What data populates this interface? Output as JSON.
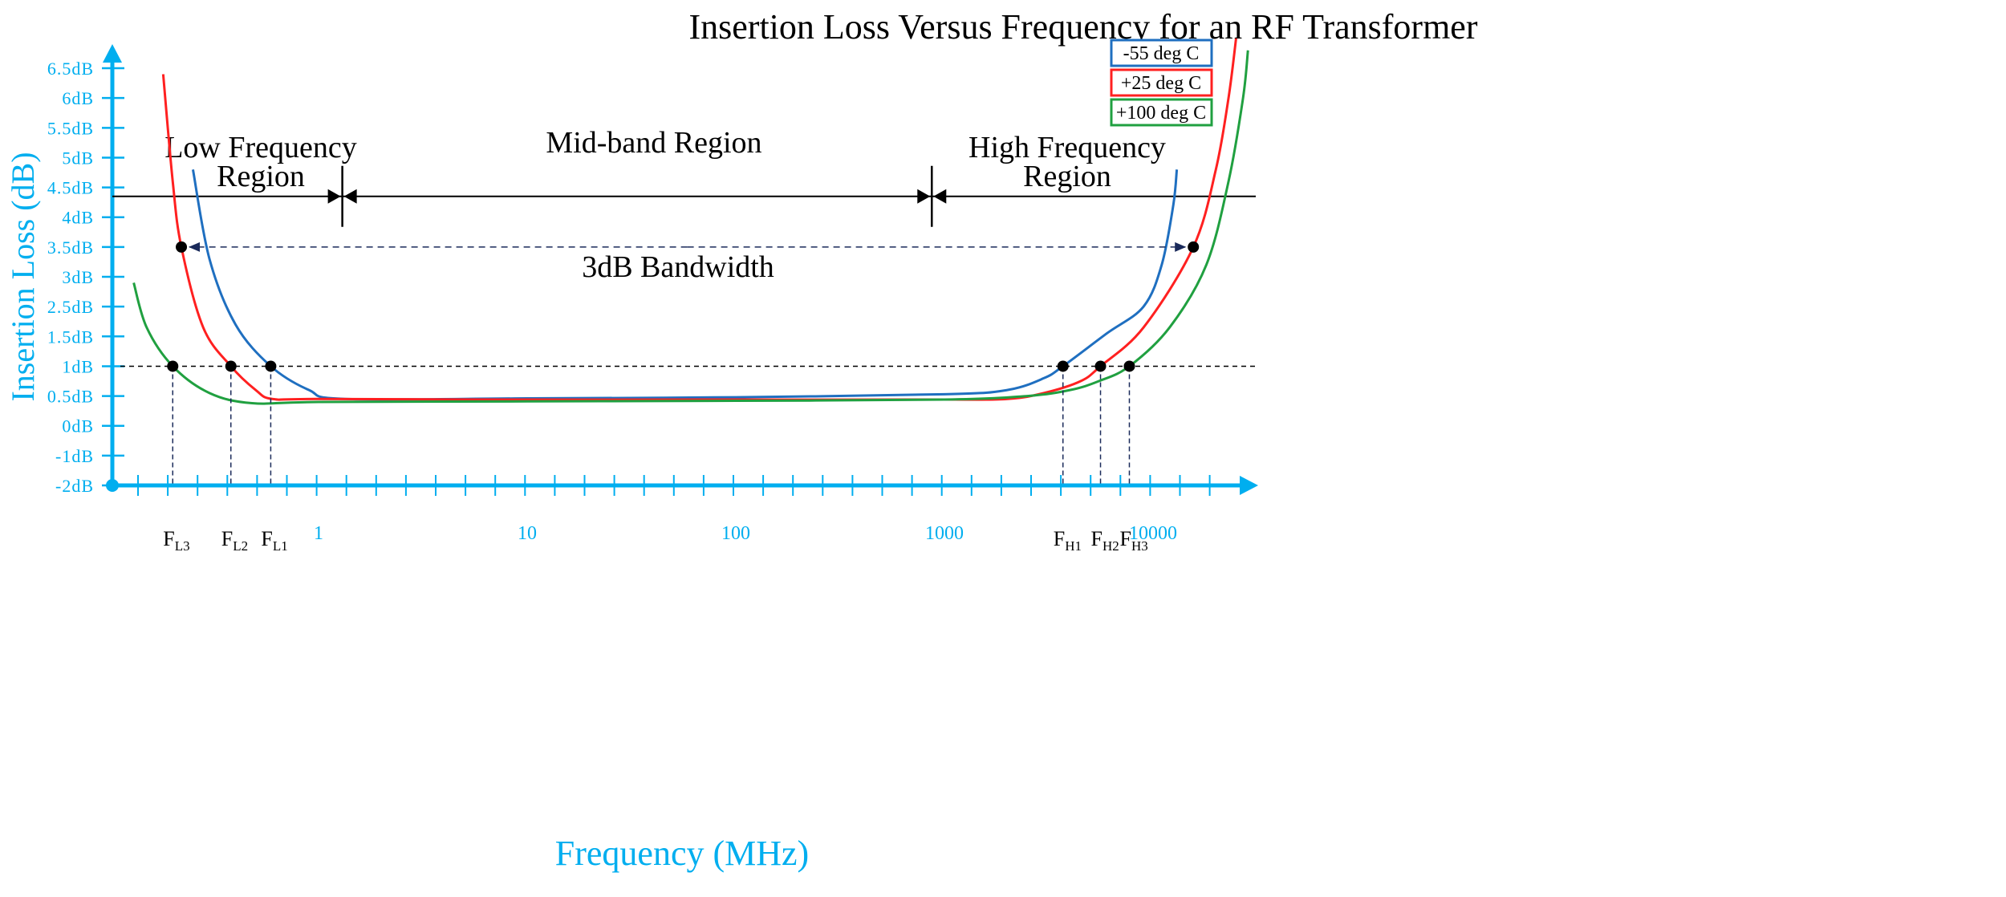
{
  "chart_data": {
    "type": "line",
    "title": "Insertion Loss Versus Frequency for an RF Transformer",
    "xlabel": "Frequency (MHz)",
    "ylabel": "Insertion Loss (dB)",
    "x_scale": "log",
    "x_tick_labels": [
      "1",
      "10",
      "100",
      "1000",
      "10000"
    ],
    "x_tick_values": [
      1,
      10,
      100,
      1000,
      10000
    ],
    "y_tick_labels": [
      "-2dB",
      "-1dB",
      "0dB",
      "0.5dB",
      "1dB",
      "1.5dB",
      "2.5dB",
      "3dB",
      "3.5dB",
      "4dB",
      "4.5dB",
      "5dB",
      "5.5dB",
      "6dB",
      "6.5dB"
    ],
    "y_tick_values": [
      -2,
      -1,
      0,
      0.5,
      1,
      1.5,
      2.5,
      3,
      3.5,
      4,
      4.5,
      5,
      5.5,
      6,
      6.5
    ],
    "axis_color": "#00AEEF",
    "legend_position": "top-right",
    "series": [
      {
        "name": "-55 deg C",
        "color": "#1F6FC0",
        "x": [
          0.25,
          0.3,
          0.4,
          0.59,
          0.9,
          1.34,
          10,
          100,
          1000,
          2000,
          3000,
          3700,
          6000,
          9000,
          11000,
          12500,
          13000
        ],
        "y": [
          4.8,
          3.3,
          1.9,
          1.0,
          0.6,
          0.45,
          0.46,
          0.48,
          0.53,
          0.6,
          0.8,
          1.0,
          1.6,
          2.5,
          3.2,
          4.2,
          4.8
        ]
      },
      {
        "name": "+25 deg C",
        "color": "#FF2020",
        "x": [
          0.18,
          0.2,
          0.22,
          0.28,
          0.38,
          0.5,
          0.6,
          1,
          10,
          100,
          1000,
          2000,
          3000,
          4500,
          5600,
          9000,
          15600,
          20000,
          23000,
          25000
        ],
        "y": [
          6.4,
          4.6,
          3.5,
          1.8,
          1.0,
          0.6,
          0.45,
          0.45,
          0.44,
          0.44,
          0.44,
          0.45,
          0.55,
          0.75,
          1.0,
          1.8,
          3.5,
          4.8,
          6.0,
          7.0
        ]
      },
      {
        "name": "+100 deg C",
        "color": "#20A040",
        "x": [
          0.13,
          0.15,
          0.2,
          0.3,
          0.48,
          1,
          10,
          100,
          1000,
          2500,
          4000,
          5500,
          7700,
          12000,
          18000,
          23000,
          27000,
          28500
        ],
        "y": [
          2.9,
          1.8,
          1.0,
          0.55,
          0.38,
          0.4,
          0.41,
          0.42,
          0.44,
          0.5,
          0.6,
          0.75,
          1.0,
          1.8,
          3.2,
          4.6,
          6.0,
          6.8
        ]
      }
    ],
    "markers_1dB": [
      {
        "label": "F",
        "sub": "L3",
        "x": 0.2,
        "y": 1
      },
      {
        "label": "F",
        "sub": "L2",
        "x": 0.38,
        "y": 1
      },
      {
        "label": "F",
        "sub": "L1",
        "x": 0.59,
        "y": 1
      },
      {
        "label": "F",
        "sub": "H1",
        "x": 3700,
        "y": 1
      },
      {
        "label": "F",
        "sub": "H2",
        "x": 5600,
        "y": 1
      },
      {
        "label": "F",
        "sub": "H3",
        "x": 7700,
        "y": 1
      }
    ],
    "bandwidth": {
      "label": "3dB Bandwidth",
      "x_start": 0.22,
      "x_end": 15600,
      "y": 3.5
    },
    "regions": {
      "line_y": 4.35,
      "boundaries": [
        1.3,
        870
      ],
      "low": [
        "Low Frequency",
        "Region"
      ],
      "mid": "Mid-band Region",
      "high": [
        "High Frequency",
        "Region"
      ]
    }
  }
}
